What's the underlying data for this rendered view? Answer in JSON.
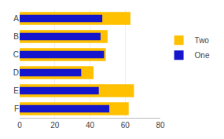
{
  "chart_data": {
    "type": "bar",
    "orientation": "horizontal",
    "categories": [
      "A",
      "B",
      "C",
      "D",
      "E",
      "F"
    ],
    "series": [
      {
        "name": "Two",
        "color": "#FFC000",
        "values": [
          63,
          50,
          49,
          42,
          65,
          62
        ]
      },
      {
        "name": "One",
        "color": "#1515CC",
        "values": [
          47,
          46,
          48,
          35,
          45,
          51
        ]
      }
    ],
    "xlim": [
      0,
      80
    ],
    "xticks": [
      0,
      20,
      40,
      60,
      80
    ],
    "grid": true,
    "legend": "right"
  }
}
